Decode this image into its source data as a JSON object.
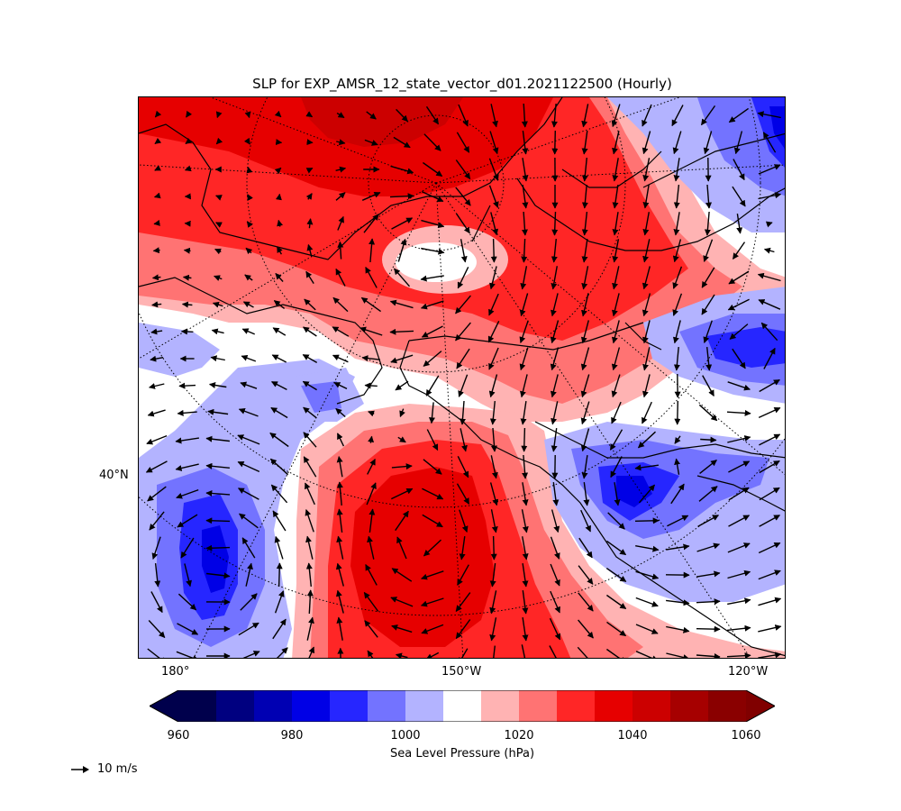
{
  "title": "SLP for EXP_AMSR_12_state_vector_d01.2021122500 (Hourly)",
  "axes": {
    "x_ticks": [
      "180°",
      "150°W",
      "120°W"
    ],
    "y_ticks": [
      "40°N"
    ]
  },
  "colorbar": {
    "label": "Sea Level Pressure (hPa)",
    "min": 960,
    "max": 1060,
    "step": 5,
    "tick_labels": [
      "960",
      "980",
      "1000",
      "1020",
      "1040",
      "1060"
    ],
    "extend": "both",
    "colors": [
      "#00004c",
      "#000080",
      "#0000b3",
      "#0000e6",
      "#2626ff",
      "#7373ff",
      "#b3b3ff",
      "#ffffff",
      "#ffb3b3",
      "#ff7373",
      "#ff2626",
      "#e60000",
      "#cc0000",
      "#a60000",
      "#8a0000"
    ],
    "under_color": "#00004c",
    "over_color": "#800000"
  },
  "quiver_key": {
    "label": "10 m/s"
  },
  "map": {
    "projection": "polar-stereographic",
    "fields": "sea level pressure (filled contours) and 10 m wind vectors",
    "features": [
      "high pressure over Arctic / Alaska",
      "high pressure center over North Pacific near 150°W",
      "low pressure centers west of 180° and off the Pacific Northwest coast"
    ]
  },
  "colors": {
    "coastline": "#000000",
    "graticule": "#000000",
    "arrow": "#000000"
  }
}
